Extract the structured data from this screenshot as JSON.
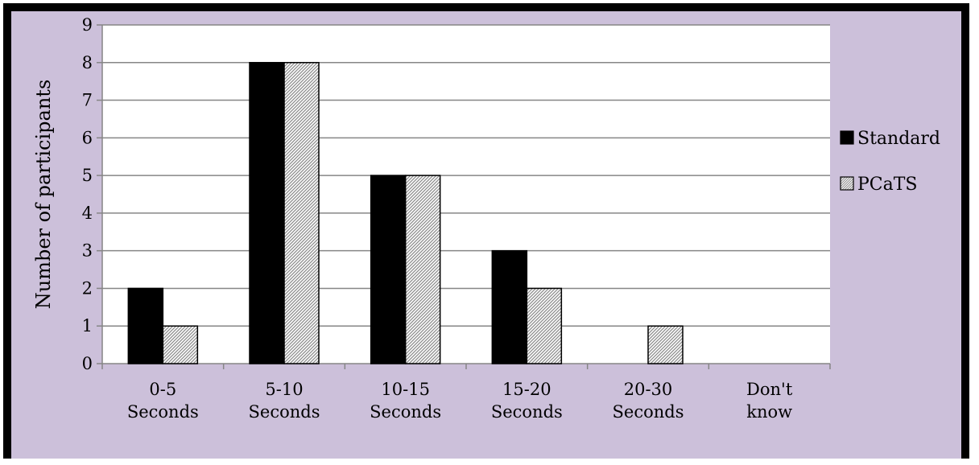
{
  "chart_data": {
    "type": "bar",
    "title": "",
    "xlabel": "",
    "ylabel": "Number of participants",
    "ylim": [
      0,
      9
    ],
    "yticks": [
      0,
      1,
      2,
      3,
      4,
      5,
      6,
      7,
      8,
      9
    ],
    "categories": [
      [
        "0-5",
        "Seconds"
      ],
      [
        "5-10",
        "Seconds"
      ],
      [
        "10-15",
        "Seconds"
      ],
      [
        "15-20",
        "Seconds"
      ],
      [
        "20-30",
        "Seconds"
      ],
      [
        "Don't",
        "know"
      ]
    ],
    "series": [
      {
        "name": "Standard",
        "values": [
          2,
          8,
          5,
          3,
          0,
          0
        ],
        "fill": "solid",
        "color": "#000000"
      },
      {
        "name": "PCaTS",
        "values": [
          1,
          8,
          5,
          2,
          1,
          0
        ],
        "fill": "hatched",
        "color": "#bfbfbf"
      }
    ],
    "grid": true,
    "legend_position": "right",
    "background_color": "#ccc0da",
    "plot_background_color": "#ffffff"
  }
}
